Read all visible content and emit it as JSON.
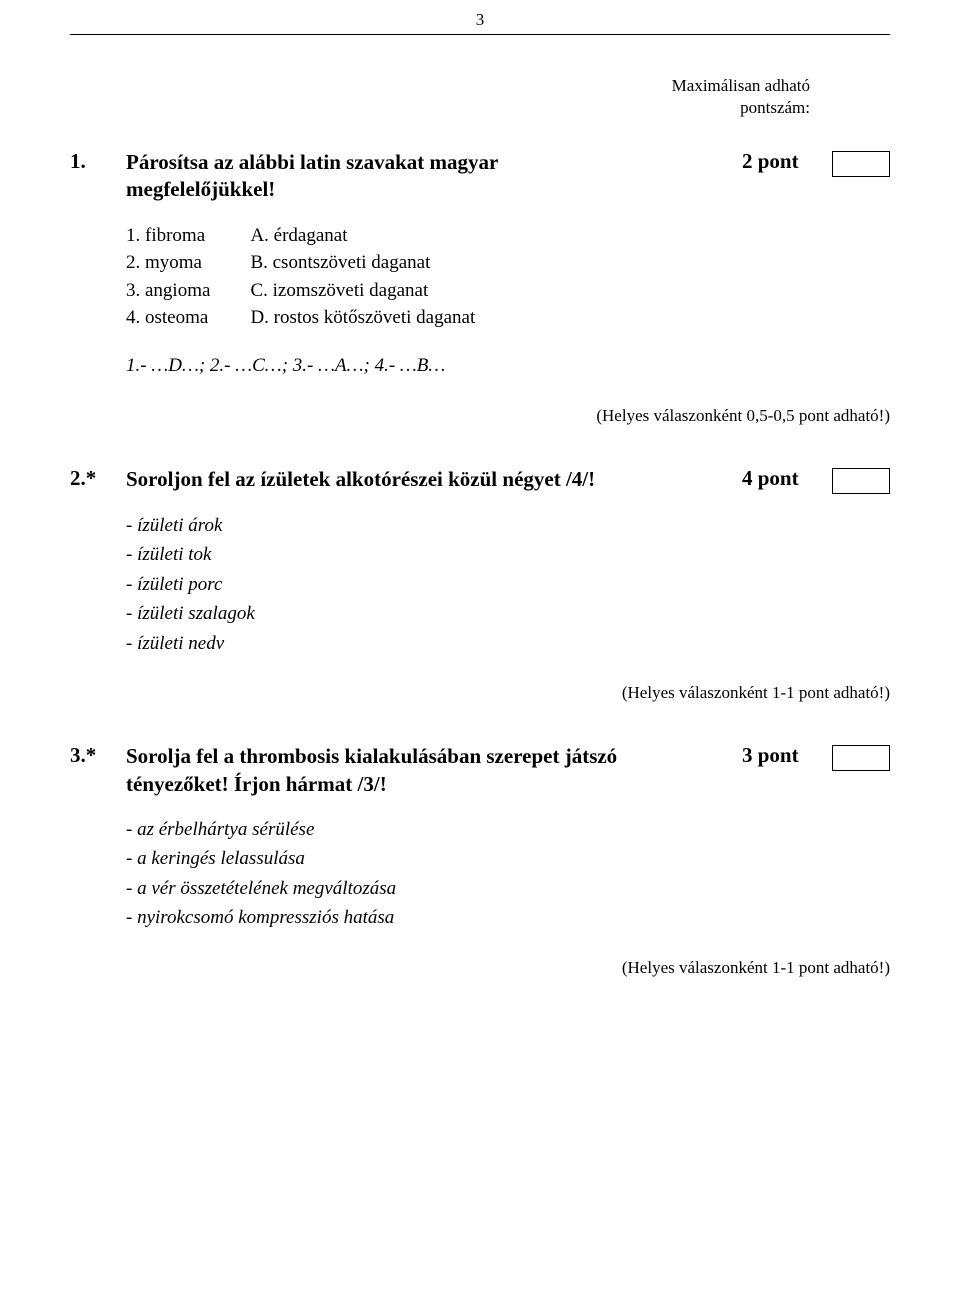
{
  "page_number": "3",
  "header": {
    "line1": "Maximálisan adható",
    "line2": "pontszám:"
  },
  "q1": {
    "num": "1.",
    "text_line1": "Párosítsa az alábbi latin szavakat magyar",
    "text_line2": "megfelelőjükkel!",
    "points": "2 pont",
    "pairs": [
      {
        "left": "1. fibroma",
        "right": "A. érdaganat"
      },
      {
        "left": "2. myoma",
        "right": "B. csontszöveti daganat"
      },
      {
        "left": "3. angioma",
        "right": "C. izomszöveti daganat"
      },
      {
        "left": "4. osteoma",
        "right": "D. rostos kötőszöveti daganat"
      }
    ],
    "answer_key": "1.- …D…;   2.- …C…;   3.- …A…;   4.- …B…",
    "scoring": "(Helyes válaszonként 0,5-0,5 pont adható!)"
  },
  "q2": {
    "num": "2.*",
    "text": "Soroljon fel az ízületek alkotórészei közül négyet /4/!",
    "points": "4 pont",
    "answers": [
      "- ízületi árok",
      "- ízületi tok",
      "- ízületi porc",
      "- ízületi szalagok",
      "- ízületi nedv"
    ],
    "scoring": "(Helyes válaszonként 1-1 pont adható!)"
  },
  "q3": {
    "num": "3.*",
    "text_line1": "Sorolja fel a thrombosis kialakulásában szerepet játszó",
    "text_line2": "tényezőket! Írjon hármat /3/!",
    "points": "3 pont",
    "answers": [
      "- az érbelhártya sérülése",
      "- a keringés lelassulása",
      "- a vér összetételének megváltozása",
      "- nyirokcsomó kompressziós hatása"
    ],
    "scoring": "(Helyes válaszonként 1-1 pont adható!)"
  }
}
